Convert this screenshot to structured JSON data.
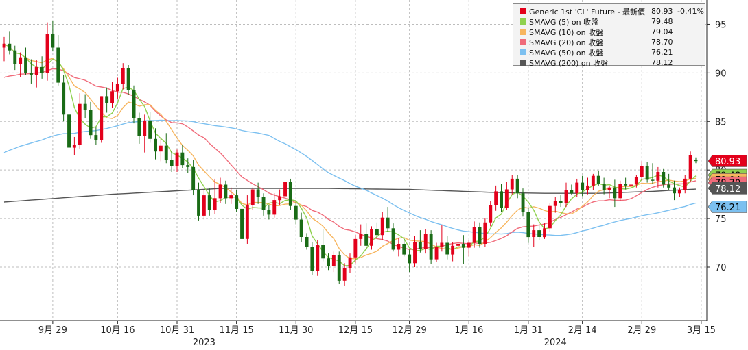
{
  "legend": {
    "rows": [
      {
        "label": "Generic 1st 'CL' Future - 最新價",
        "value": "80.93",
        "change": "-0.41%",
        "color": "#e3001b"
      },
      {
        "label": "SMAVG (5)  on 收盤",
        "value": "79.48",
        "change": "",
        "color": "#8fd14f"
      },
      {
        "label": "SMAVG (10)  on 收盤",
        "value": "79.04",
        "change": "",
        "color": "#f7b55e"
      },
      {
        "label": "SMAVG (20)  on 收盤",
        "value": "78.70",
        "change": "",
        "color": "#f06b7a"
      },
      {
        "label": "SMAVG (50)  on 收盤",
        "value": "76.21",
        "change": "",
        "color": "#7cc0f0"
      },
      {
        "label": "SMAVG (200)  on 收盤",
        "value": "78.12",
        "change": "",
        "color": "#555555"
      }
    ]
  },
  "chart_data": {
    "type": "candlestick",
    "y_ticks": [
      "95",
      "90",
      "85",
      "80",
      "75",
      "70"
    ],
    "ylim": [
      64.5,
      97.5
    ],
    "x_ticks": [
      {
        "label": "9月 29",
        "index": 9
      },
      {
        "label": "10月 16",
        "index": 21
      },
      {
        "label": "10月 31",
        "index": 32
      },
      {
        "label": "11月 15",
        "index": 43
      },
      {
        "label": "11月 30",
        "index": 54
      },
      {
        "label": "12月 15",
        "index": 65
      },
      {
        "label": "12月 29",
        "index": 75
      },
      {
        "label": "1月 16",
        "index": 86
      },
      {
        "label": "1月 31",
        "index": 97
      },
      {
        "label": "2月 14",
        "index": 107
      },
      {
        "label": "2月 29",
        "index": 118
      },
      {
        "label": "3月 15",
        "index": 129
      }
    ],
    "years": [
      {
        "label": "2023",
        "index": 37
      },
      {
        "label": "2024",
        "index": 102
      }
    ],
    "candles": [
      [
        92.6,
        93.7,
        91.2,
        93.0
      ],
      [
        93.0,
        94.3,
        91.9,
        92.3
      ],
      [
        92.3,
        92.8,
        90.3,
        90.9
      ],
      [
        90.9,
        92.1,
        89.6,
        91.6
      ],
      [
        91.6,
        92.6,
        89.8,
        90.0
      ],
      [
        90.0,
        91.4,
        88.9,
        89.8
      ],
      [
        89.8,
        91.3,
        88.5,
        90.6
      ],
      [
        90.6,
        91.7,
        89.4,
        90.0
      ],
      [
        90.0,
        95.2,
        89.2,
        94.0
      ],
      [
        94.0,
        95.4,
        92.2,
        92.6
      ],
      [
        92.6,
        93.9,
        88.7,
        89.0
      ],
      [
        89.0,
        89.8,
        85.0,
        85.7
      ],
      [
        85.7,
        86.6,
        82.0,
        82.3
      ],
      [
        82.3,
        83.4,
        81.5,
        82.6
      ],
      [
        82.6,
        87.9,
        82.2,
        86.8
      ],
      [
        86.8,
        87.8,
        85.3,
        86.2
      ],
      [
        86.2,
        87.0,
        83.2,
        83.6
      ],
      [
        83.6,
        84.4,
        82.6,
        83.1
      ],
      [
        83.1,
        87.6,
        82.8,
        87.6
      ],
      [
        87.6,
        88.5,
        85.9,
        86.9
      ],
      [
        86.9,
        89.1,
        86.4,
        88.1
      ],
      [
        88.1,
        89.5,
        87.3,
        88.9
      ],
      [
        88.9,
        91.0,
        88.3,
        90.5
      ],
      [
        90.5,
        90.8,
        87.7,
        88.2
      ],
      [
        88.2,
        88.7,
        84.8,
        85.3
      ],
      [
        85.3,
        85.9,
        82.7,
        83.5
      ],
      [
        83.5,
        85.7,
        81.8,
        85.1
      ],
      [
        85.1,
        86.0,
        82.8,
        83.2
      ],
      [
        83.2,
        84.3,
        81.1,
        81.9
      ],
      [
        81.9,
        83.3,
        80.9,
        82.5
      ],
      [
        82.5,
        83.8,
        80.7,
        81.0
      ],
      [
        81.0,
        81.9,
        79.8,
        80.4
      ],
      [
        80.4,
        82.1,
        79.8,
        81.8
      ],
      [
        81.8,
        82.6,
        80.2,
        80.5
      ],
      [
        80.5,
        81.2,
        79.7,
        80.3
      ],
      [
        80.3,
        81.0,
        77.4,
        77.9
      ],
      [
        77.9,
        78.7,
        74.8,
        75.3
      ],
      [
        75.3,
        77.9,
        74.9,
        77.4
      ],
      [
        77.4,
        78.1,
        75.3,
        75.9
      ],
      [
        75.9,
        79.1,
        75.5,
        77.1
      ],
      [
        77.1,
        79.2,
        76.6,
        78.5
      ],
      [
        78.5,
        78.9,
        76.5,
        77.1
      ],
      [
        77.1,
        78.2,
        76.5,
        77.4
      ],
      [
        77.4,
        77.9,
        75.7,
        76.0
      ],
      [
        76.0,
        76.3,
        72.5,
        72.9
      ],
      [
        72.9,
        77.4,
        72.4,
        76.4
      ],
      [
        76.4,
        78.2,
        75.9,
        78.0
      ],
      [
        78.0,
        78.7,
        76.5,
        77.2
      ],
      [
        77.2,
        77.6,
        75.3,
        75.9
      ],
      [
        75.9,
        76.4,
        74.9,
        75.4
      ],
      [
        75.4,
        77.6,
        75.1,
        76.9
      ],
      [
        76.9,
        78.0,
        76.4,
        77.3
      ],
      [
        77.3,
        79.4,
        76.9,
        78.8
      ],
      [
        78.8,
        79.1,
        75.9,
        76.3
      ],
      [
        76.3,
        76.8,
        74.4,
        74.9
      ],
      [
        74.9,
        75.6,
        72.6,
        73.1
      ],
      [
        73.1,
        73.5,
        71.8,
        72.1
      ],
      [
        72.1,
        72.6,
        69.2,
        69.6
      ],
      [
        69.6,
        72.8,
        69.1,
        72.3
      ],
      [
        72.3,
        73.9,
        70.6,
        70.9
      ],
      [
        70.9,
        71.4,
        69.7,
        70.1
      ],
      [
        70.1,
        71.6,
        69.5,
        71.2
      ],
      [
        71.2,
        71.6,
        68.3,
        68.6
      ],
      [
        68.6,
        70.4,
        68.1,
        69.9
      ],
      [
        69.9,
        71.4,
        69.4,
        71.0
      ],
      [
        71.0,
        73.3,
        70.4,
        72.9
      ],
      [
        72.9,
        74.4,
        72.2,
        73.4
      ],
      [
        73.4,
        74.5,
        71.8,
        72.2
      ],
      [
        72.2,
        74.2,
        71.8,
        73.9
      ],
      [
        73.9,
        74.6,
        73.0,
        73.3
      ],
      [
        73.3,
        75.7,
        72.8,
        75.1
      ],
      [
        75.1,
        76.2,
        73.6,
        74.0
      ],
      [
        74.0,
        74.5,
        71.6,
        71.8
      ],
      [
        71.8,
        73.0,
        71.1,
        72.4
      ],
      [
        72.4,
        72.9,
        71.1,
        71.3
      ],
      [
        71.3,
        71.8,
        69.5,
        70.4
      ],
      [
        70.4,
        73.2,
        70.0,
        72.6
      ],
      [
        72.6,
        73.8,
        71.5,
        71.9
      ],
      [
        71.9,
        73.9,
        71.4,
        73.4
      ],
      [
        73.4,
        73.8,
        70.3,
        70.8
      ],
      [
        70.8,
        72.5,
        70.5,
        72.1
      ],
      [
        72.1,
        74.3,
        71.6,
        72.5
      ],
      [
        72.5,
        73.2,
        70.8,
        71.3
      ],
      [
        71.3,
        72.6,
        70.6,
        72.2
      ],
      [
        72.2,
        72.6,
        71.7,
        72.4
      ],
      [
        72.4,
        73.3,
        70.3,
        72.0
      ],
      [
        72.0,
        72.8,
        71.1,
        72.5
      ],
      [
        72.5,
        74.7,
        72.0,
        74.1
      ],
      [
        74.1,
        74.6,
        72.0,
        72.4
      ],
      [
        72.4,
        75.0,
        72.1,
        74.6
      ],
      [
        74.6,
        76.8,
        74.2,
        76.4
      ],
      [
        76.4,
        78.4,
        75.8,
        77.8
      ],
      [
        77.8,
        78.6,
        75.7,
        76.1
      ],
      [
        76.1,
        78.8,
        75.9,
        78.0
      ],
      [
        78.0,
        79.5,
        77.5,
        79.1
      ],
      [
        79.1,
        79.5,
        77.1,
        77.6
      ],
      [
        77.6,
        78.1,
        75.2,
        75.7
      ],
      [
        75.7,
        76.1,
        72.5,
        73.1
      ],
      [
        73.1,
        74.4,
        72.1,
        73.8
      ],
      [
        73.8,
        74.3,
        72.8,
        73.1
      ],
      [
        73.1,
        74.5,
        72.9,
        74.0
      ],
      [
        74.0,
        76.6,
        73.6,
        76.3
      ],
      [
        76.3,
        77.2,
        75.6,
        76.8
      ],
      [
        76.8,
        77.4,
        76.2,
        76.6
      ],
      [
        76.6,
        78.7,
        76.2,
        77.9
      ],
      [
        77.9,
        78.5,
        77.4,
        77.6
      ],
      [
        77.6,
        79.1,
        77.2,
        78.7
      ],
      [
        78.7,
        79.4,
        77.3,
        77.9
      ],
      [
        77.9,
        79.2,
        77.5,
        78.4
      ],
      [
        78.4,
        79.6,
        77.9,
        79.4
      ],
      [
        79.4,
        79.9,
        78.4,
        78.6
      ],
      [
        78.6,
        79.2,
        77.5,
        77.9
      ],
      [
        77.9,
        78.4,
        77.1,
        78.2
      ],
      [
        78.2,
        79.0,
        76.2,
        77.1
      ],
      [
        77.1,
        78.9,
        76.8,
        78.6
      ],
      [
        78.6,
        79.2,
        78.0,
        78.4
      ],
      [
        78.4,
        79.1,
        77.9,
        78.5
      ],
      [
        78.5,
        79.5,
        78.2,
        79.3
      ],
      [
        79.3,
        80.9,
        78.9,
        80.4
      ],
      [
        80.4,
        80.8,
        78.7,
        79.0
      ],
      [
        79.0,
        80.7,
        78.6,
        78.9
      ],
      [
        78.9,
        80.3,
        78.2,
        79.8
      ],
      [
        79.8,
        80.1,
        78.2,
        78.5
      ],
      [
        78.5,
        79.6,
        77.9,
        78.2
      ],
      [
        78.2,
        78.9,
        76.9,
        77.6
      ],
      [
        77.6,
        78.2,
        77.2,
        77.9
      ],
      [
        77.9,
        79.5,
        77.6,
        79.1
      ],
      [
        79.1,
        81.9,
        78.8,
        81.5
      ],
      [
        81.0,
        81.3,
        80.7,
        80.93
      ]
    ],
    "badges": [
      {
        "label": "80.93",
        "value": 80.93,
        "bg": "#e3001b",
        "fg": "#ffffff"
      },
      {
        "label": "79.48",
        "value": 79.48,
        "bg": "#8fd14f",
        "fg": "#000000"
      },
      {
        "label": "79.04",
        "value": 79.04,
        "bg": "#f7b55e",
        "fg": "#000000"
      },
      {
        "label": "78.70",
        "value": 78.7,
        "bg": "#f06b7a",
        "fg": "#000000"
      },
      {
        "label": "78.12",
        "value": 78.12,
        "bg": "#555555",
        "fg": "#ffffff"
      },
      {
        "label": "76.21",
        "value": 76.21,
        "bg": "#7cc0f0",
        "fg": "#000000"
      }
    ],
    "series_colors": {
      "up": "#e3001b",
      "down": "#1a6b16",
      "ma5": "#8fd14f",
      "ma10": "#f7b55e",
      "ma20": "#f06b7a",
      "ma50": "#7cc0f0",
      "ma200": "#555555"
    },
    "ma20_seed": [
      89.5,
      89.2
    ],
    "ma50_seed": [
      81.5,
      81.0,
      82.0
    ],
    "ma200": [
      [
        0,
        76.7
      ],
      [
        20,
        77.5
      ],
      [
        40,
        78.1
      ],
      [
        60,
        78.1
      ],
      [
        75,
        78.0
      ],
      [
        90,
        77.7
      ],
      [
        100,
        77.6
      ],
      [
        110,
        77.6
      ],
      [
        120,
        77.8
      ],
      [
        131,
        78.12
      ]
    ]
  }
}
